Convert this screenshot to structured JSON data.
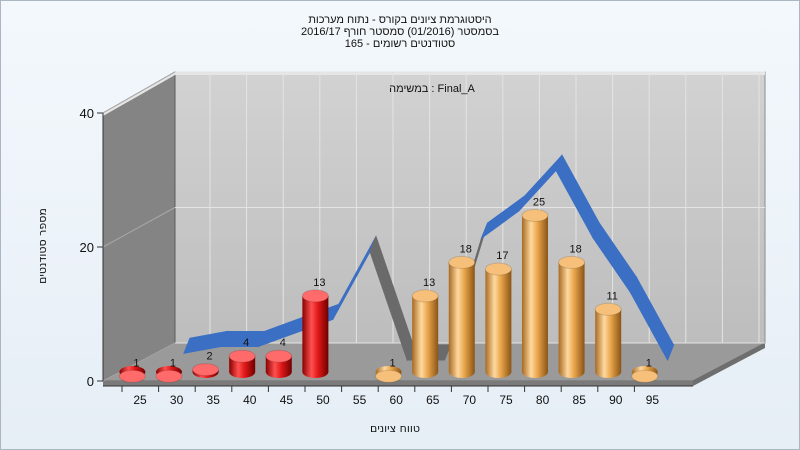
{
  "header": {
    "title_lines": [
      "היסטוגרמת ציונים בקורס - נתוח מערכות",
      "בסמסטר  (01/2016)  סמסטר חורף 2016/17",
      "סטודנטים רשומים - 165"
    ]
  },
  "colors": {
    "fail_bar": "#e02020",
    "pass_bar": "#e8a54b",
    "ribbon": "#3a6fc4",
    "ribbon_gap": "#6a6a6a",
    "wall_left": "#848484",
    "wall_back": "#c8c8c8",
    "floor": "#9a9a9a"
  },
  "chart_data": {
    "type": "bar",
    "list_label": "Final_A : במשימה",
    "xlabel": "טווח ציונים",
    "ylabel": "מספר סטודנטים",
    "categories": [
      "25",
      "30",
      "35",
      "40",
      "45",
      "50",
      "55",
      "60",
      "65",
      "70",
      "75",
      "80",
      "85",
      "90",
      "95"
    ],
    "x_ticks": [
      "25",
      "30",
      "35",
      "40",
      "45",
      "50",
      "55",
      "60",
      "65",
      "70",
      "75",
      "80",
      "85",
      "90",
      "95"
    ],
    "y_ticks": [
      "0",
      "20",
      "40"
    ],
    "ylim": [
      0,
      40
    ],
    "grid": true,
    "series": [
      {
        "kind": "fail",
        "values": [
          1,
          1,
          2,
          4,
          4,
          13,
          null,
          null,
          null,
          null,
          null,
          null,
          null,
          null,
          null
        ]
      },
      {
        "kind": "pass",
        "values": [
          null,
          null,
          null,
          null,
          null,
          null,
          null,
          1,
          13,
          18,
          17,
          25,
          18,
          11,
          1
        ]
      }
    ],
    "data_labels": [
      "1",
      "1",
      "2",
      "4",
      "4",
      "13",
      "",
      "1",
      "13",
      "18",
      "17",
      "25",
      "18",
      "11",
      "1"
    ],
    "ribbon_values": [
      1,
      2,
      2,
      4,
      6,
      16,
      0,
      0,
      18,
      22,
      28,
      18,
      10,
      0
    ]
  }
}
